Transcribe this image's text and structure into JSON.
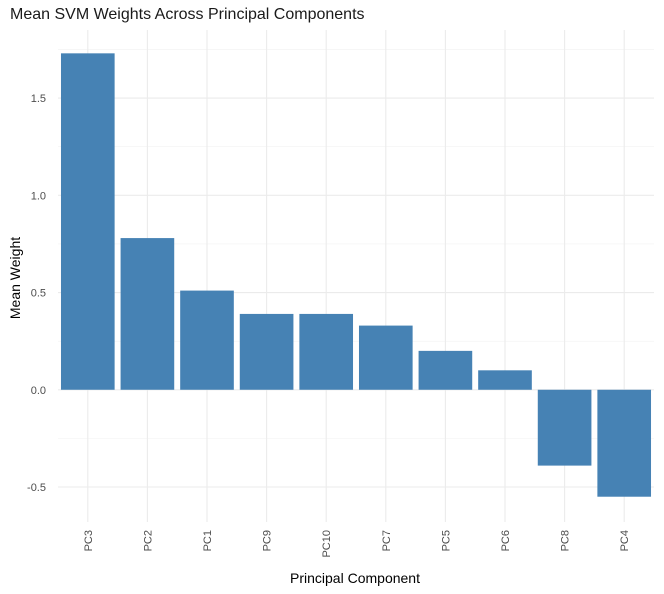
{
  "chart_data": {
    "type": "bar",
    "title": "Mean SVM Weights Across Principal Components",
    "xlabel": "Principal Component",
    "ylabel": "Mean Weight",
    "categories": [
      "PC3",
      "PC2",
      "PC1",
      "PC9",
      "PC10",
      "PC7",
      "PC5",
      "PC6",
      "PC8",
      "PC4"
    ],
    "values": [
      1.73,
      0.78,
      0.51,
      0.39,
      0.39,
      0.33,
      0.2,
      0.1,
      -0.39,
      -0.55
    ],
    "ylim": [
      -0.68,
      1.85
    ],
    "yticks": [
      -0.5,
      0.0,
      0.5,
      1.0,
      1.5
    ],
    "ytick_labels": [
      "-0.5",
      "0.0",
      "0.5",
      "1.0",
      "1.5"
    ],
    "bar_color": "#4682B4",
    "grid": true,
    "legend": "none"
  }
}
